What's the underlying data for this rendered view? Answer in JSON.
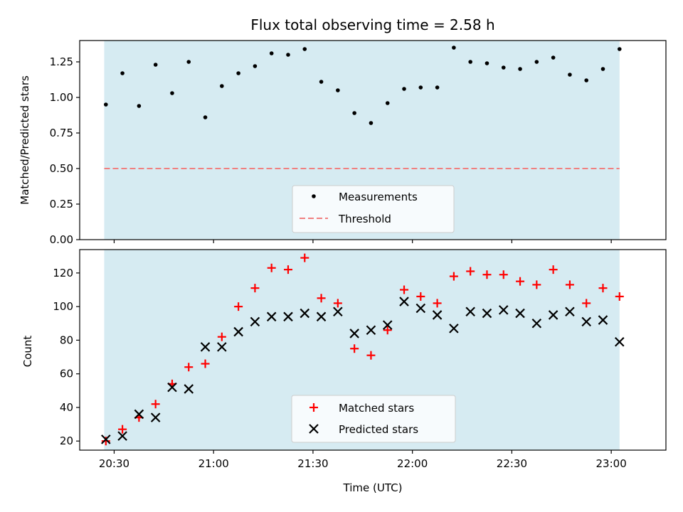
{
  "chart_data": [
    {
      "type": "scatter",
      "title": "Flux total observing time = 2.58 h",
      "xlabel": "",
      "ylabel": "Matched/Predicted stars",
      "ylim": [
        0,
        1.4
      ],
      "yticks": [
        "0.00",
        "0.25",
        "0.50",
        "0.75",
        "1.00",
        "1.25"
      ],
      "ytick_values": [
        0,
        0.25,
        0.5,
        0.75,
        1.0,
        1.25
      ],
      "xlim_minutes": [
        -10.4,
        166.5
      ],
      "shaded_span_minutes": [
        -3,
        152.5
      ],
      "shaded_color": "#add8e6",
      "threshold": 0.5,
      "threshold_color": "#f08080",
      "legend_position": "lower center",
      "series": [
        {
          "name": "Measurements",
          "marker": "dot",
          "color": "#000000",
          "x_minutes": [
            -2.5,
            2.5,
            7.5,
            12.5,
            17.5,
            22.5,
            27.5,
            32.5,
            37.5,
            42.5,
            47.5,
            52.5,
            57.5,
            62.5,
            67.5,
            72.5,
            77.5,
            82.5,
            87.5,
            92.5,
            97.5,
            102.5,
            107.5,
            112.5,
            117.5,
            122.5,
            127.5,
            132.5,
            137.5,
            142.5,
            147.5,
            152.5
          ],
          "values": [
            0.95,
            1.17,
            0.94,
            1.23,
            1.03,
            1.25,
            0.86,
            1.08,
            1.17,
            1.22,
            1.31,
            1.3,
            1.34,
            1.11,
            1.05,
            0.89,
            0.82,
            0.96,
            1.06,
            1.07,
            1.07,
            1.35,
            1.25,
            1.24,
            1.21,
            1.2,
            1.25,
            1.28,
            1.16,
            1.12,
            1.2,
            1.34
          ]
        }
      ]
    },
    {
      "type": "scatter",
      "title": "",
      "xlabel": "Time (UTC)",
      "ylabel": "Count",
      "ylim": [
        14.6,
        133.9
      ],
      "yticks": [
        "20",
        "40",
        "60",
        "80",
        "100",
        "120"
      ],
      "ytick_values": [
        20,
        40,
        60,
        80,
        100,
        120
      ],
      "xticks": [
        "20:30",
        "21:00",
        "21:30",
        "22:00",
        "22:30",
        "23:00"
      ],
      "xtick_minutes": [
        0,
        30,
        60,
        90,
        120,
        150
      ],
      "xlim_minutes": [
        -10.4,
        166.5
      ],
      "shaded_span_minutes": [
        -3,
        152.5
      ],
      "shaded_color": "#add8e6",
      "legend_position": "lower center",
      "series": [
        {
          "name": "Matched stars",
          "marker": "plus",
          "color": "#ff0000",
          "x_minutes": [
            -2.5,
            2.5,
            7.5,
            12.5,
            17.5,
            22.5,
            27.5,
            32.5,
            37.5,
            42.5,
            47.5,
            52.5,
            57.5,
            62.5,
            67.5,
            72.5,
            77.5,
            82.5,
            87.5,
            92.5,
            97.5,
            102.5,
            107.5,
            112.5,
            117.5,
            122.5,
            127.5,
            132.5,
            137.5,
            142.5,
            147.5,
            152.5
          ],
          "values": [
            20,
            27,
            34,
            42,
            54,
            64,
            66,
            82,
            100,
            111,
            123,
            122,
            129,
            105,
            102,
            75,
            71,
            86,
            110,
            106,
            102,
            118,
            121,
            119,
            119,
            115,
            113,
            122,
            113,
            102,
            111,
            106
          ]
        },
        {
          "name": "Predicted stars",
          "marker": "x",
          "color": "#000000",
          "x_minutes": [
            -2.5,
            2.5,
            7.5,
            12.5,
            17.5,
            22.5,
            27.5,
            32.5,
            37.5,
            42.5,
            47.5,
            52.5,
            57.5,
            62.5,
            67.5,
            72.5,
            77.5,
            82.5,
            87.5,
            92.5,
            97.5,
            102.5,
            107.5,
            112.5,
            117.5,
            122.5,
            127.5,
            132.5,
            137.5,
            142.5,
            147.5,
            152.5
          ],
          "values": [
            21,
            23,
            36,
            34,
            52,
            51,
            76,
            76,
            85,
            91,
            94,
            94,
            96,
            94,
            97,
            84,
            86,
            89,
            103,
            99,
            95,
            87,
            97,
            96,
            98,
            96,
            90,
            95,
            97,
            91,
            92,
            79
          ]
        }
      ]
    }
  ]
}
